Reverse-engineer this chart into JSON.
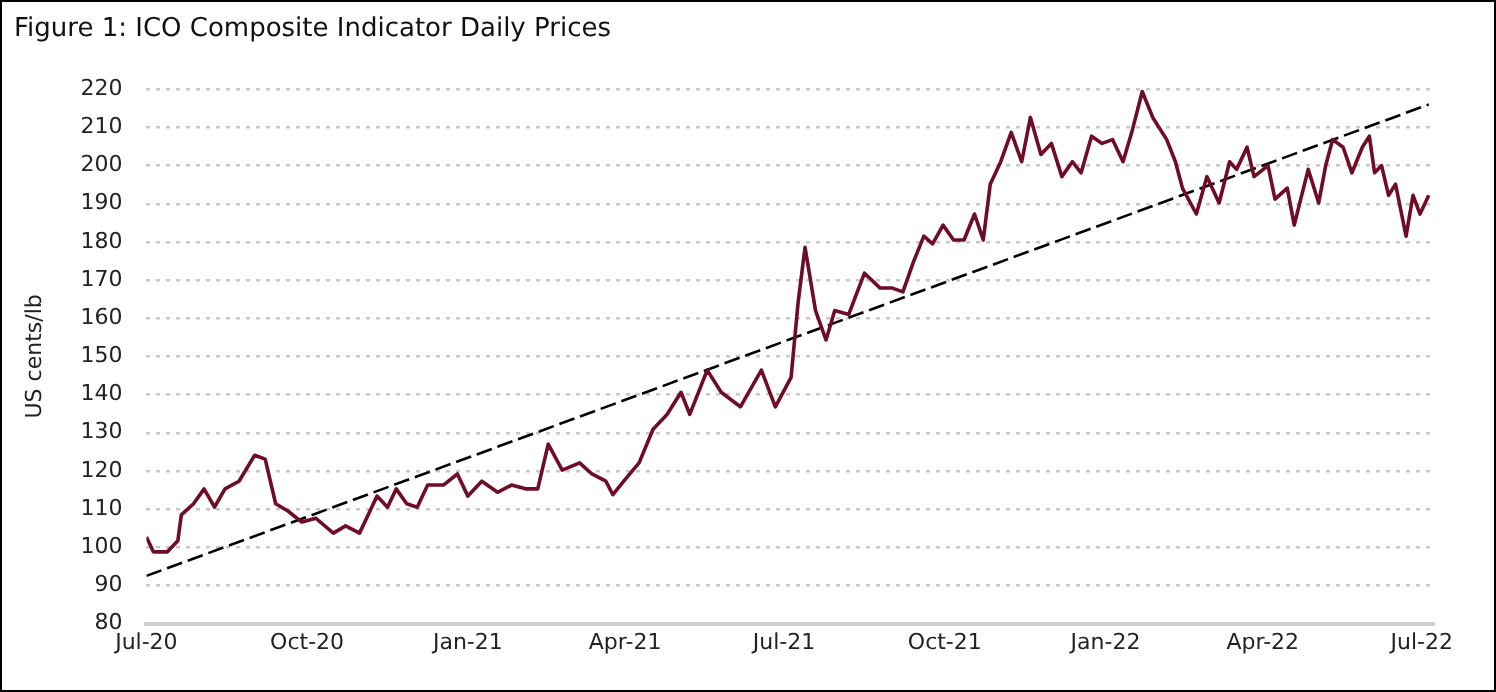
{
  "chart_data": {
    "type": "line",
    "title": "Figure 1: ICO Composite Indicator Daily Prices",
    "ylabel": "US cents/lb",
    "xlim": [
      "2020-07-01",
      "2022-07-08"
    ],
    "xticks": [
      {
        "value": "2020-07-01",
        "label": "Jul-20"
      },
      {
        "value": "2020-10-01",
        "label": "Oct-20"
      },
      {
        "value": "2021-01-01",
        "label": "Jan-21"
      },
      {
        "value": "2021-04-01",
        "label": "Apr-21"
      },
      {
        "value": "2021-07-01",
        "label": "Jul-21"
      },
      {
        "value": "2021-10-01",
        "label": "Oct-21"
      },
      {
        "value": "2022-01-01",
        "label": "Jan-22"
      },
      {
        "value": "2022-04-01",
        "label": "Apr-22"
      },
      {
        "value": "2022-07-01",
        "label": "Jul-22"
      }
    ],
    "ylim": [
      80,
      220
    ],
    "yticks": [
      80,
      90,
      100,
      110,
      120,
      130,
      140,
      150,
      160,
      170,
      180,
      190,
      200,
      210,
      220
    ],
    "grid": "y",
    "legend": false,
    "marker": "none",
    "series": [
      {
        "color": "#6e0d25",
        "line_style": "solid",
        "x": [
          "2020-07-01",
          "2020-07-05",
          "2020-07-13",
          "2020-07-19",
          "2020-07-21",
          "2020-07-28",
          "2020-08-03",
          "2020-08-09",
          "2020-08-15",
          "2020-08-23",
          "2020-09-01",
          "2020-09-07",
          "2020-09-13",
          "2020-09-20",
          "2020-09-28",
          "2020-10-06",
          "2020-10-16",
          "2020-10-23",
          "2020-10-31",
          "2020-11-10",
          "2020-11-16",
          "2020-11-21",
          "2020-11-27",
          "2020-12-03",
          "2020-12-09",
          "2020-12-18",
          "2020-12-26",
          "2021-01-01",
          "2021-01-09",
          "2021-01-18",
          "2021-01-26",
          "2021-02-03",
          "2021-02-10",
          "2021-02-16",
          "2021-02-24",
          "2021-03-06",
          "2021-03-13",
          "2021-03-21",
          "2021-03-25",
          "2021-04-02",
          "2021-04-09",
          "2021-04-17",
          "2021-04-25",
          "2021-05-03",
          "2021-05-08",
          "2021-05-18",
          "2021-05-26",
          "2021-06-06",
          "2021-06-18",
          "2021-06-26",
          "2021-07-05",
          "2021-07-09",
          "2021-07-13",
          "2021-07-19",
          "2021-07-25",
          "2021-07-30",
          "2021-08-07",
          "2021-08-16",
          "2021-08-25",
          "2021-09-01",
          "2021-09-07",
          "2021-09-13",
          "2021-09-19",
          "2021-09-24",
          "2021-09-30",
          "2021-10-06",
          "2021-10-12",
          "2021-10-18",
          "2021-10-23",
          "2021-10-27",
          "2021-11-02",
          "2021-11-08",
          "2021-11-14",
          "2021-11-19",
          "2021-11-25",
          "2021-12-01",
          "2021-12-07",
          "2021-12-13",
          "2021-12-18",
          "2021-12-24",
          "2021-12-30",
          "2022-01-05",
          "2022-01-11",
          "2022-01-16",
          "2022-01-22",
          "2022-01-28",
          "2022-02-05",
          "2022-02-10",
          "2022-02-14",
          "2022-02-22",
          "2022-02-28",
          "2022-03-07",
          "2022-03-13",
          "2022-03-17",
          "2022-03-23",
          "2022-03-27",
          "2022-04-04",
          "2022-04-08",
          "2022-04-15",
          "2022-04-19",
          "2022-04-27",
          "2022-05-03",
          "2022-05-07",
          "2022-05-11",
          "2022-05-17",
          "2022-05-22",
          "2022-05-28",
          "2022-06-01",
          "2022-06-04",
          "2022-06-08",
          "2022-06-12",
          "2022-06-16",
          "2022-06-22",
          "2022-06-26",
          "2022-06-30",
          "2022-07-05"
        ],
        "values": [
          102.7,
          98.8,
          98.8,
          101.7,
          108.5,
          111.4,
          115.3,
          110.5,
          115.3,
          117.3,
          124.1,
          123.1,
          111.4,
          109.5,
          106.6,
          107.6,
          103.7,
          105.6,
          103.7,
          113.4,
          110.5,
          115.3,
          111.4,
          110.5,
          116.3,
          116.3,
          119.2,
          113.4,
          117.3,
          114.4,
          116.3,
          115.3,
          115.3,
          127,
          120.2,
          122.1,
          119.2,
          117.3,
          113.8,
          118.3,
          122.1,
          130.9,
          134.8,
          140.6,
          134.8,
          146.4,
          140.6,
          136.8,
          146.4,
          136.8,
          144.5,
          164,
          178.6,
          162,
          154.3,
          162,
          161,
          171.8,
          167.9,
          167.9,
          166.9,
          174.7,
          181.5,
          179.5,
          184.4,
          180.5,
          180.5,
          187.3,
          180.5,
          195.1,
          201,
          208.7,
          201,
          212.6,
          202.9,
          205.8,
          197.1,
          201,
          198.1,
          207.7,
          205.8,
          206.8,
          201,
          208.7,
          219.4,
          212.6,
          206.8,
          201,
          194.1,
          187.3,
          197.1,
          190.2,
          201,
          199,
          204.8,
          197.1,
          200,
          191.2,
          194.1,
          184.4,
          199,
          190.2,
          200,
          206.8,
          204.8,
          198.1,
          204.8,
          207.7,
          198.1,
          200,
          192.2,
          195.1,
          181.5,
          192.2,
          187.3,
          192.2
        ]
      },
      {
        "type": "line",
        "color": "#000000",
        "line_style": "dashed",
        "x": [
          "2020-07-01",
          "2022-07-05"
        ],
        "values": [
          92.5,
          216
        ]
      }
    ]
  }
}
